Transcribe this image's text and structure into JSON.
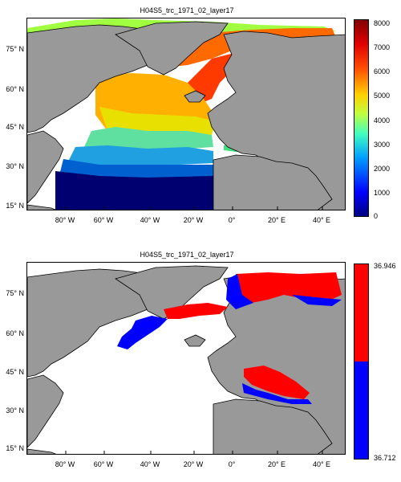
{
  "panels": [
    {
      "title": "H04S5_trc_1971_02_layer17",
      "lat_labels": [
        "75° N",
        "60° N",
        "45° N",
        "30° N",
        "15° N"
      ],
      "lon_labels": [
        "80° W",
        "60° W",
        "40° W",
        "20° W",
        "0°",
        "20° E",
        "40° E"
      ],
      "colorbar": {
        "type": "jet",
        "ticks": [
          "8000",
          "7000",
          "6000",
          "5000",
          "4000",
          "3000",
          "2000",
          "1000",
          "0"
        ],
        "min": 0,
        "max": 8000
      }
    },
    {
      "title": "H04S5_trc_1971_02_layer17",
      "lat_labels": [
        "75° N",
        "60° N",
        "45° N",
        "30° N",
        "15° N"
      ],
      "lon_labels": [
        "80° W",
        "60° W",
        "40° W",
        "20° W",
        "0°",
        "20° E",
        "40° E"
      ],
      "colorbar": {
        "type": "two-class",
        "ticks": [
          "36.946",
          "36.712"
        ],
        "colors": [
          "#ff0000",
          "#0000ff"
        ]
      }
    }
  ],
  "colors": {
    "land": "#999999",
    "ocean_empty": "#ffffff"
  }
}
